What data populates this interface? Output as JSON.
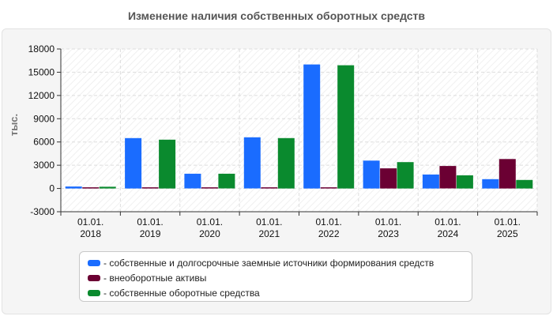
{
  "chart_data": {
    "type": "bar",
    "title": "Изменение наличия собственных оборотных средств",
    "ylabel": "тыс.",
    "xlabel": "",
    "ylim": [
      -3000,
      18000
    ],
    "yticks": [
      -3000,
      0,
      3000,
      6000,
      9000,
      12000,
      15000,
      18000
    ],
    "grid": true,
    "legend_position": "bottom",
    "categories": [
      [
        "01.01.",
        "2018"
      ],
      [
        "01.01.",
        "2019"
      ],
      [
        "01.01.",
        "2020"
      ],
      [
        "01.01.",
        "2021"
      ],
      [
        "01.01.",
        "2022"
      ],
      [
        "01.01.",
        "2023"
      ],
      [
        "01.01.",
        "2024"
      ],
      [
        "01.01.",
        "2025"
      ]
    ],
    "series": [
      {
        "name": "- собственные и долгосрочные заемные источники формирования средств",
        "color": "#1a6cff",
        "values": [
          250,
          6500,
          1900,
          6600,
          16000,
          3600,
          1800,
          1200
        ]
      },
      {
        "name": "- внеоборотные активы",
        "color": "#6b0033",
        "values": [
          150,
          150,
          150,
          150,
          150,
          2600,
          2900,
          3800
        ]
      },
      {
        "name": "- собственные оборотные средства",
        "color": "#0a8a2e",
        "values": [
          220,
          6300,
          1900,
          6500,
          15900,
          3400,
          1700,
          1100
        ]
      }
    ]
  }
}
